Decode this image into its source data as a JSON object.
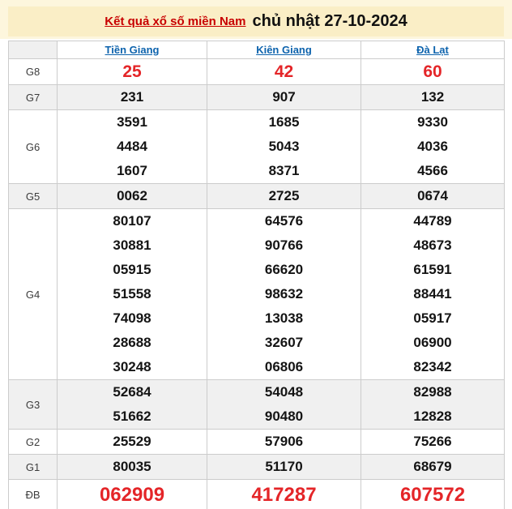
{
  "title": {
    "link": "Kết quả xổ số miền Nam",
    "date": "chủ nhật 27-10-2024"
  },
  "columns": [
    "Tiền Giang",
    "Kiên Giang",
    "Đà Lạt"
  ],
  "colors": {
    "accent_red": "#e42528",
    "link_red": "#c80000",
    "link_blue": "#0d63ad",
    "band_yellow": "#faeec6",
    "page_cream": "#fdf6dd",
    "shaded_row": "#f0f0f0",
    "border_gray": "#cccccc"
  },
  "prizes": [
    {
      "label": "G8",
      "style": "red-md",
      "shaded": false,
      "rows": [
        [
          "25",
          "42",
          "60"
        ]
      ]
    },
    {
      "label": "G7",
      "style": "",
      "shaded": true,
      "rows": [
        [
          "231",
          "907",
          "132"
        ]
      ]
    },
    {
      "label": "G6",
      "style": "",
      "shaded": false,
      "rows": [
        [
          "3591",
          "1685",
          "9330"
        ],
        [
          "4484",
          "5043",
          "4036"
        ],
        [
          "1607",
          "8371",
          "4566"
        ]
      ]
    },
    {
      "label": "G5",
      "style": "",
      "shaded": true,
      "rows": [
        [
          "0062",
          "2725",
          "0674"
        ]
      ]
    },
    {
      "label": "G4",
      "style": "",
      "shaded": false,
      "rows": [
        [
          "80107",
          "64576",
          "44789"
        ],
        [
          "30881",
          "90766",
          "48673"
        ],
        [
          "05915",
          "66620",
          "61591"
        ],
        [
          "51558",
          "98632",
          "88441"
        ],
        [
          "74098",
          "13038",
          "05917"
        ],
        [
          "28688",
          "32607",
          "06900"
        ],
        [
          "30248",
          "06806",
          "82342"
        ]
      ]
    },
    {
      "label": "G3",
      "style": "",
      "shaded": true,
      "rows": [
        [
          "52684",
          "54048",
          "82988"
        ],
        [
          "51662",
          "90480",
          "12828"
        ]
      ]
    },
    {
      "label": "G2",
      "style": "",
      "shaded": false,
      "rows": [
        [
          "25529",
          "57906",
          "75266"
        ]
      ]
    },
    {
      "label": "G1",
      "style": "",
      "shaded": true,
      "rows": [
        [
          "80035",
          "51170",
          "68679"
        ]
      ]
    },
    {
      "label": "ĐB",
      "style": "red-lg",
      "shaded": false,
      "rows": [
        [
          "062909",
          "417287",
          "607572"
        ]
      ]
    }
  ]
}
